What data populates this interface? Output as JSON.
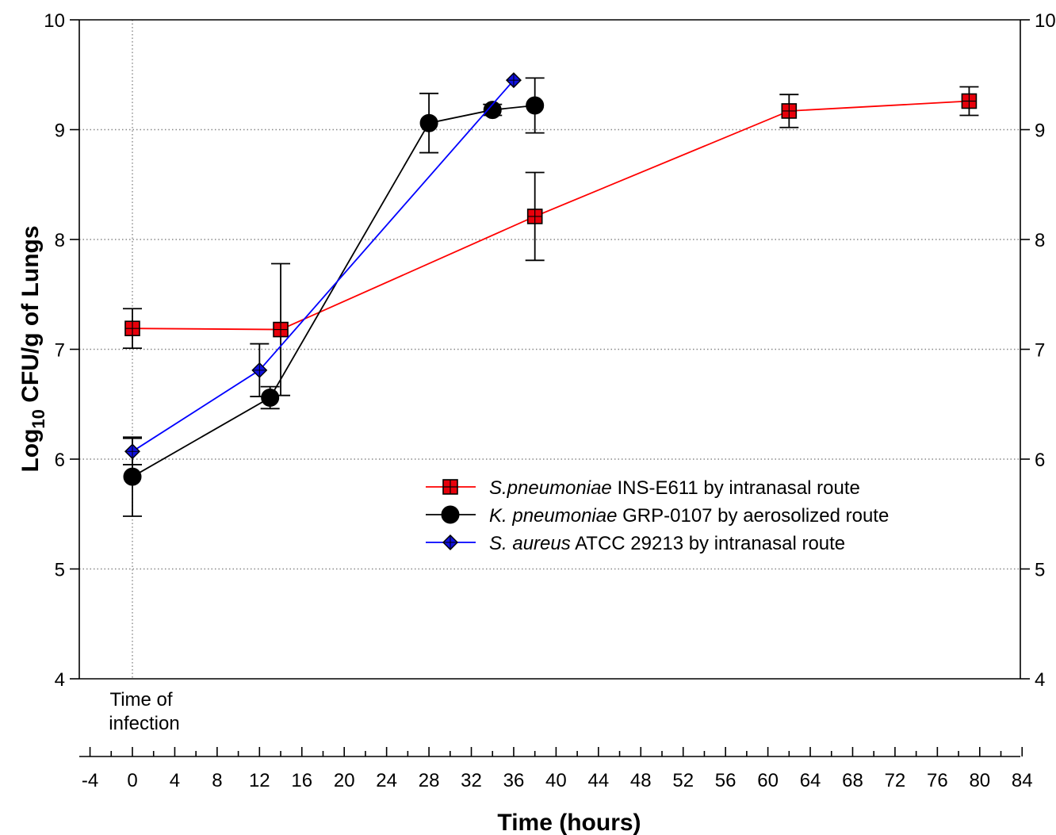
{
  "chart_data": {
    "type": "line",
    "xlabel": "Time (hours)",
    "ylabel_main": "Log",
    "ylabel_sub": "10",
    "ylabel_rest": " CFU/g of Lungs",
    "xlim": [
      -5,
      84
    ],
    "ylim": [
      4,
      10
    ],
    "x_ticks": [
      -4,
      0,
      4,
      8,
      12,
      16,
      20,
      24,
      28,
      32,
      36,
      40,
      44,
      48,
      52,
      56,
      60,
      64,
      68,
      72,
      76,
      80,
      84
    ],
    "y_ticks": [
      4,
      5,
      6,
      7,
      8,
      9,
      10
    ],
    "grid": "dotted",
    "legend_position": "center-right",
    "annotation": [
      "Time of",
      "infection"
    ],
    "series": [
      {
        "name_italic": "S.pneumoniae",
        "name_rest": " INS-E611 by intranasal route",
        "color": "#ff0000",
        "marker": "square",
        "marker_fill": "#e8000b",
        "x": [
          0,
          14,
          38,
          62,
          79
        ],
        "y": [
          7.19,
          7.18,
          8.21,
          9.17,
          9.26
        ],
        "err": [
          0.18,
          0.6,
          0.4,
          0.15,
          0.13
        ]
      },
      {
        "name_italic": "K. pneumoniae",
        "name_rest": " GRP-0107 by aerosolized route",
        "color": "#000000",
        "marker": "circle",
        "marker_fill": "#000000",
        "x": [
          0,
          13,
          28,
          34,
          38
        ],
        "y": [
          5.84,
          6.56,
          9.06,
          9.18,
          9.22
        ],
        "err": [
          0.36,
          0.1,
          0.27,
          0.05,
          0.25
        ]
      },
      {
        "name_italic": "S. aureus",
        "name_rest": " ATCC 29213 by intranasal route",
        "color": "#0000ff",
        "marker": "diamond",
        "marker_fill": "#1010e0",
        "x": [
          0,
          12,
          36
        ],
        "y": [
          6.07,
          6.81,
          9.45
        ],
        "err": [
          0.12,
          0.24,
          0
        ]
      }
    ]
  }
}
